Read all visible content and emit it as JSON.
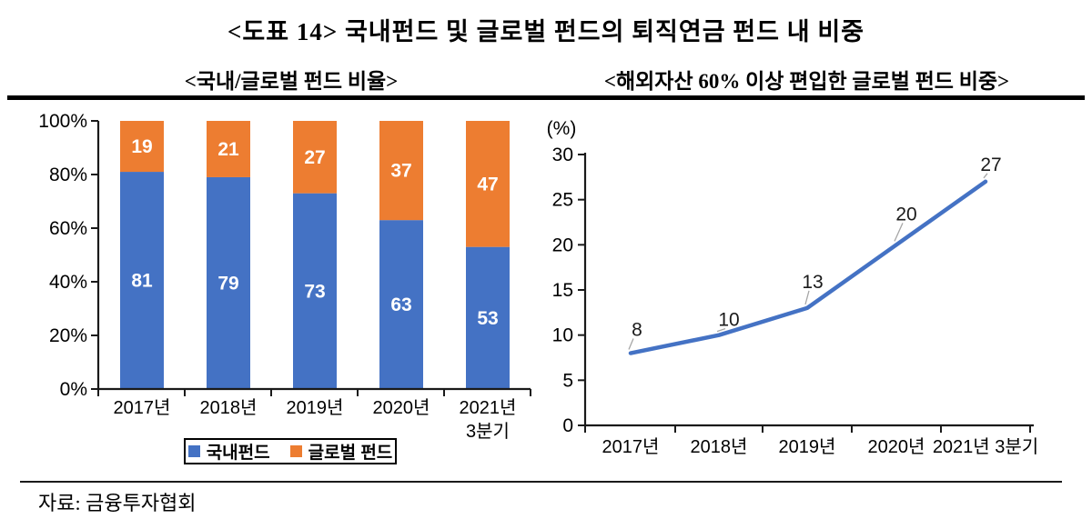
{
  "title": "<도표 14> 국내펀드 및 글로벌 펀드의 퇴직연금 펀드 내 비중",
  "source": "자료: 금융투자협회",
  "colors": {
    "domestic_blue": "#4472C4",
    "global_orange": "#ED7D31",
    "line_blue": "#4472C4",
    "axis": "#1a1a1a",
    "leader_gray": "#a6a6a6"
  },
  "chart_data": [
    {
      "type": "bar",
      "stacked": true,
      "title": "<국내/글로벌 펀드 비율>",
      "categories": [
        "2017년",
        "2018년",
        "2019년",
        "2020년",
        "2021년\n3분기"
      ],
      "series": [
        {
          "name": "국내펀드",
          "color": "#4472C4",
          "values": [
            81,
            79,
            73,
            63,
            53
          ]
        },
        {
          "name": "글로벌 펀드",
          "color": "#ED7D31",
          "values": [
            19,
            21,
            27,
            37,
            47
          ]
        }
      ],
      "y_ticks": [
        "0%",
        "20%",
        "40%",
        "60%",
        "80%",
        "100%"
      ],
      "ylim": [
        0,
        100
      ],
      "grid": false,
      "legend_position": "bottom"
    },
    {
      "type": "line",
      "title": "<해외자산 60% 이상 편입한 글로벌 펀드 비중>",
      "unit_label": "(%)",
      "categories": [
        "2017년",
        "2018년",
        "2019년",
        "2020년",
        "2021년 3분기"
      ],
      "values": [
        8,
        10,
        13,
        20,
        27
      ],
      "y_ticks": [
        0,
        5,
        10,
        15,
        20,
        25,
        30
      ],
      "ylim": [
        0,
        30
      ],
      "grid": false,
      "line_color": "#4472C4",
      "data_labels": [
        8,
        10,
        13,
        20,
        27
      ]
    }
  ]
}
